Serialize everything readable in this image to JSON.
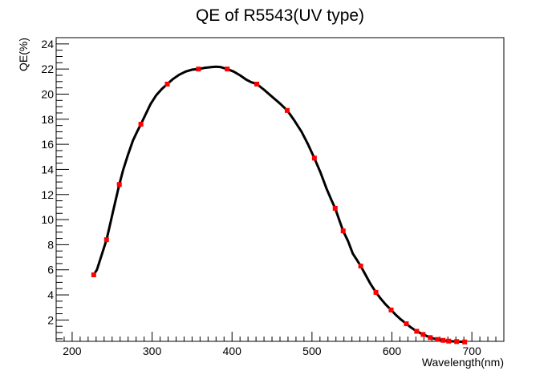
{
  "chart_data": {
    "type": "line",
    "title": "QE of R5543(UV type)",
    "xlabel": "Wavelength(nm)",
    "ylabel": "QE(%)",
    "xlim": [
      180,
      740
    ],
    "ylim": [
      0.3,
      24.5
    ],
    "x_ticks": [
      200,
      300,
      400,
      500,
      600,
      700
    ],
    "y_ticks": [
      2,
      4,
      6,
      8,
      10,
      12,
      14,
      16,
      18,
      20,
      22,
      24
    ],
    "grid": false,
    "line_color": "#000000",
    "marker_color": "#ff0000",
    "points": {
      "x": [
        227,
        243,
        259,
        286,
        319,
        358,
        394,
        431,
        469,
        503,
        529,
        539,
        561,
        580,
        599,
        618,
        631,
        639,
        648,
        657,
        664,
        671,
        681,
        691
      ],
      "y": [
        5.6,
        8.4,
        12.8,
        17.6,
        20.8,
        22.0,
        22.0,
        20.8,
        18.7,
        14.9,
        10.9,
        9.1,
        6.3,
        4.2,
        2.8,
        1.7,
        1.1,
        0.85,
        0.6,
        0.45,
        0.38,
        0.32,
        0.28,
        0.25
      ]
    },
    "curve": {
      "x": [
        227,
        231,
        235,
        239,
        243,
        247,
        251,
        255,
        259,
        264,
        270,
        276,
        282,
        286,
        292,
        298,
        305,
        312,
        319,
        326,
        334,
        342,
        350,
        358,
        366,
        374,
        380,
        386,
        394,
        402,
        410,
        418,
        424,
        431,
        440,
        450,
        460,
        469,
        478,
        487,
        495,
        503,
        511,
        518,
        524,
        529,
        534,
        539,
        545,
        551,
        556,
        561,
        567,
        573,
        580,
        586,
        592,
        599,
        605,
        611,
        618,
        624,
        631,
        639,
        648,
        657,
        664,
        671,
        681,
        691
      ],
      "y": [
        5.6,
        6.0,
        6.8,
        7.6,
        8.4,
        9.5,
        10.6,
        11.7,
        12.8,
        14.0,
        15.2,
        16.3,
        17.1,
        17.6,
        18.4,
        19.2,
        19.9,
        20.4,
        20.8,
        21.2,
        21.55,
        21.8,
        21.95,
        22.0,
        22.1,
        22.15,
        22.18,
        22.15,
        22.0,
        21.8,
        21.5,
        21.15,
        20.95,
        20.8,
        20.35,
        19.8,
        19.25,
        18.7,
        17.9,
        17.0,
        16.0,
        14.9,
        13.7,
        12.5,
        11.6,
        10.9,
        10.0,
        9.1,
        8.3,
        7.3,
        6.8,
        6.3,
        5.6,
        4.9,
        4.2,
        3.7,
        3.25,
        2.8,
        2.4,
        2.05,
        1.7,
        1.4,
        1.1,
        0.85,
        0.6,
        0.45,
        0.38,
        0.32,
        0.28,
        0.25
      ]
    }
  }
}
